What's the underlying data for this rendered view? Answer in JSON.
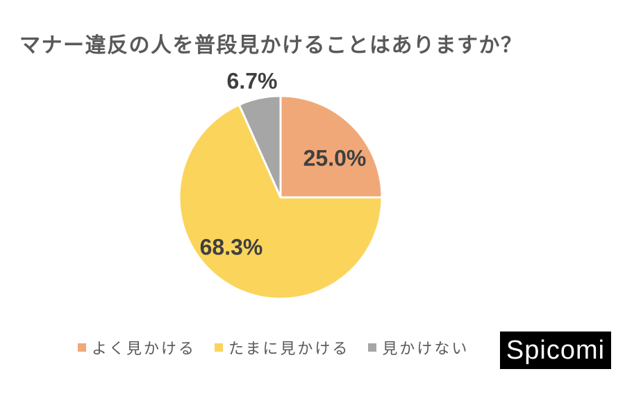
{
  "title": "マナー違反の人を普段見かけることはありますか？",
  "chart_data": {
    "type": "pie",
    "title": "マナー違反の人を普段見かけることはありますか？",
    "start_angle_deg": 0,
    "direction": "clockwise",
    "legend_position": "bottom",
    "slices": [
      {
        "label": "よく見かける",
        "value": 25.0,
        "display": "25.0%",
        "color": "#F0A878",
        "label_placement": "inside"
      },
      {
        "label": "たまに見かける",
        "value": 68.3,
        "display": "68.3%",
        "color": "#FBD45C",
        "label_placement": "inside"
      },
      {
        "label": "見かけない",
        "value": 6.7,
        "display": "6.7%",
        "color": "#A6A6A6",
        "label_placement": "outside-top"
      }
    ]
  },
  "legend": {
    "items": [
      {
        "label": "よく見かける"
      },
      {
        "label": "たまに見かける"
      },
      {
        "label": "見かけない"
      }
    ]
  },
  "branding": {
    "logo_text": "Spicomi",
    "logo_bg": "#000000",
    "logo_color": "#FFFFFF"
  },
  "colors": {
    "background": "#FFFFFF",
    "title_text": "#595959",
    "percent_label": "#3F3F3F",
    "legend_text": "#595959",
    "slice_border": "#FFFFFF"
  }
}
